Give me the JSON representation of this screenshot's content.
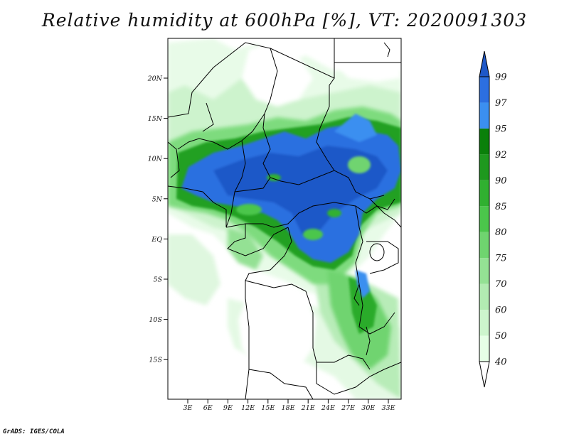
{
  "title": "Relative humidity at 600hPa [%], VT: 2020091303",
  "credit": "GrADS: IGES/COLA",
  "lat_labels": [
    "20N",
    "15N",
    "10N",
    "5N",
    "EQ",
    "5S",
    "10S",
    "15S"
  ],
  "lon_labels": [
    "3E",
    "6E",
    "9E",
    "12E",
    "15E",
    "18E",
    "21E",
    "24E",
    "27E",
    "30E",
    "33E"
  ],
  "colorbar": {
    "levels": [
      "40",
      "50",
      "60",
      "70",
      "75",
      "80",
      "85",
      "90",
      "92",
      "95",
      "97",
      "99"
    ],
    "colors": [
      "#ffffff",
      "#e6ffe6",
      "#cdf5cd",
      "#b2ebb2",
      "#94e194",
      "#6fd46f",
      "#4bc64b",
      "#30b030",
      "#1e981e",
      "#0a800a",
      "#3b8ff0",
      "#2c6fe0",
      "#1e58c8"
    ]
  },
  "map": {
    "lon_range": [
      0,
      35
    ],
    "lat_range": [
      -20,
      25
    ],
    "variable": "Relative humidity",
    "level": "600hPa",
    "units": "%"
  }
}
